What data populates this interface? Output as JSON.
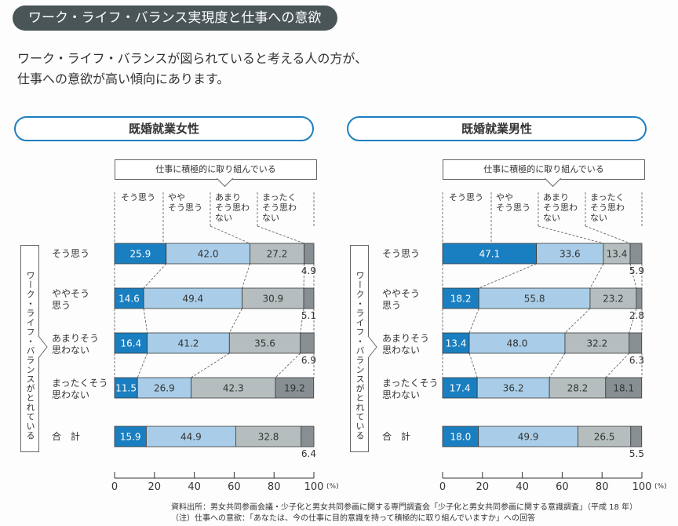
{
  "header": {
    "title": "ワーク・ライフ・バランス実現度と仕事への意欲",
    "lead_line1": "ワーク・ライフ・バランスが図られていると考える人の方が、",
    "lead_line2": "仕事への意欲が高い傾向にあります。"
  },
  "callout_label": "仕事に積極的に取り組んでいる",
  "side_label": "ワーク・ライフ・バランスがとれている",
  "column_labels": [
    [
      "そう思う"
    ],
    [
      "やや",
      "そう思う"
    ],
    [
      "あまり",
      "そう思わ",
      "ない"
    ],
    [
      "まったく",
      "そう思わ",
      "ない"
    ]
  ],
  "row_labels": [
    [
      "そう思う"
    ],
    [
      "ややそう",
      "思う"
    ],
    [
      "あまりそう",
      "思わない"
    ],
    [
      "まったくそう",
      "思わない"
    ],
    [
      "合　計"
    ]
  ],
  "colors": {
    "so_omou": "#1a7fc0",
    "yaya": "#a9cde8",
    "amari": "#b5bdbf",
    "mattaku": "#878f93",
    "pill": "#4a5557",
    "panel_border": "#1c7fc0"
  },
  "chart_data": [
    {
      "type": "bar",
      "orientation": "horizontal-stacked",
      "title": "既婚就業女性",
      "categories": [
        "そう思う",
        "ややそう思う",
        "あまりそう思わない",
        "まったくそう思わない",
        "合計"
      ],
      "series": [
        {
          "name": "そう思う",
          "values": [
            25.9,
            14.6,
            16.4,
            11.5,
            15.9
          ]
        },
        {
          "name": "ややそう思う",
          "values": [
            42.0,
            49.4,
            41.2,
            26.9,
            44.9
          ]
        },
        {
          "name": "あまりそう思わない",
          "values": [
            27.2,
            30.9,
            35.6,
            42.3,
            32.8
          ]
        },
        {
          "name": "まったくそう思わない",
          "values": [
            4.9,
            5.1,
            6.9,
            19.2,
            6.4
          ]
        }
      ],
      "xlabel": "(%)",
      "xlim": [
        0,
        100
      ],
      "xticks": [
        0,
        20,
        40,
        60,
        80,
        100
      ],
      "ylabel": "ワーク・ライフ・バランスがとれている"
    },
    {
      "type": "bar",
      "orientation": "horizontal-stacked",
      "title": "既婚就業男性",
      "categories": [
        "そう思う",
        "ややそう思う",
        "あまりそう思わない",
        "まったくそう思わない",
        "合計"
      ],
      "series": [
        {
          "name": "そう思う",
          "values": [
            47.1,
            18.2,
            13.4,
            17.4,
            18.0
          ]
        },
        {
          "name": "ややそう思う",
          "values": [
            33.6,
            55.8,
            48.0,
            36.2,
            49.9
          ]
        },
        {
          "name": "あまりそう思わない",
          "values": [
            13.4,
            23.2,
            32.2,
            28.2,
            26.5
          ]
        },
        {
          "name": "まったくそう思わない",
          "values": [
            5.9,
            2.8,
            6.3,
            18.1,
            5.5
          ]
        }
      ],
      "xlabel": "(%)",
      "xlim": [
        0,
        100
      ],
      "xticks": [
        0,
        20,
        40,
        60,
        80,
        100
      ],
      "ylabel": "ワーク・ライフ・バランスがとれている"
    }
  ],
  "notes": {
    "source": "資料出所：男女共同参画会議・少子化と男女共同参画に関する専門調査会「少子化と男女共同参画に関する意識調査」（平成 18 年）",
    "note": "（注）仕事への意欲：「あなたは、今の仕事に目的意識を持って積極的に取り組んでいますか」への回答"
  }
}
